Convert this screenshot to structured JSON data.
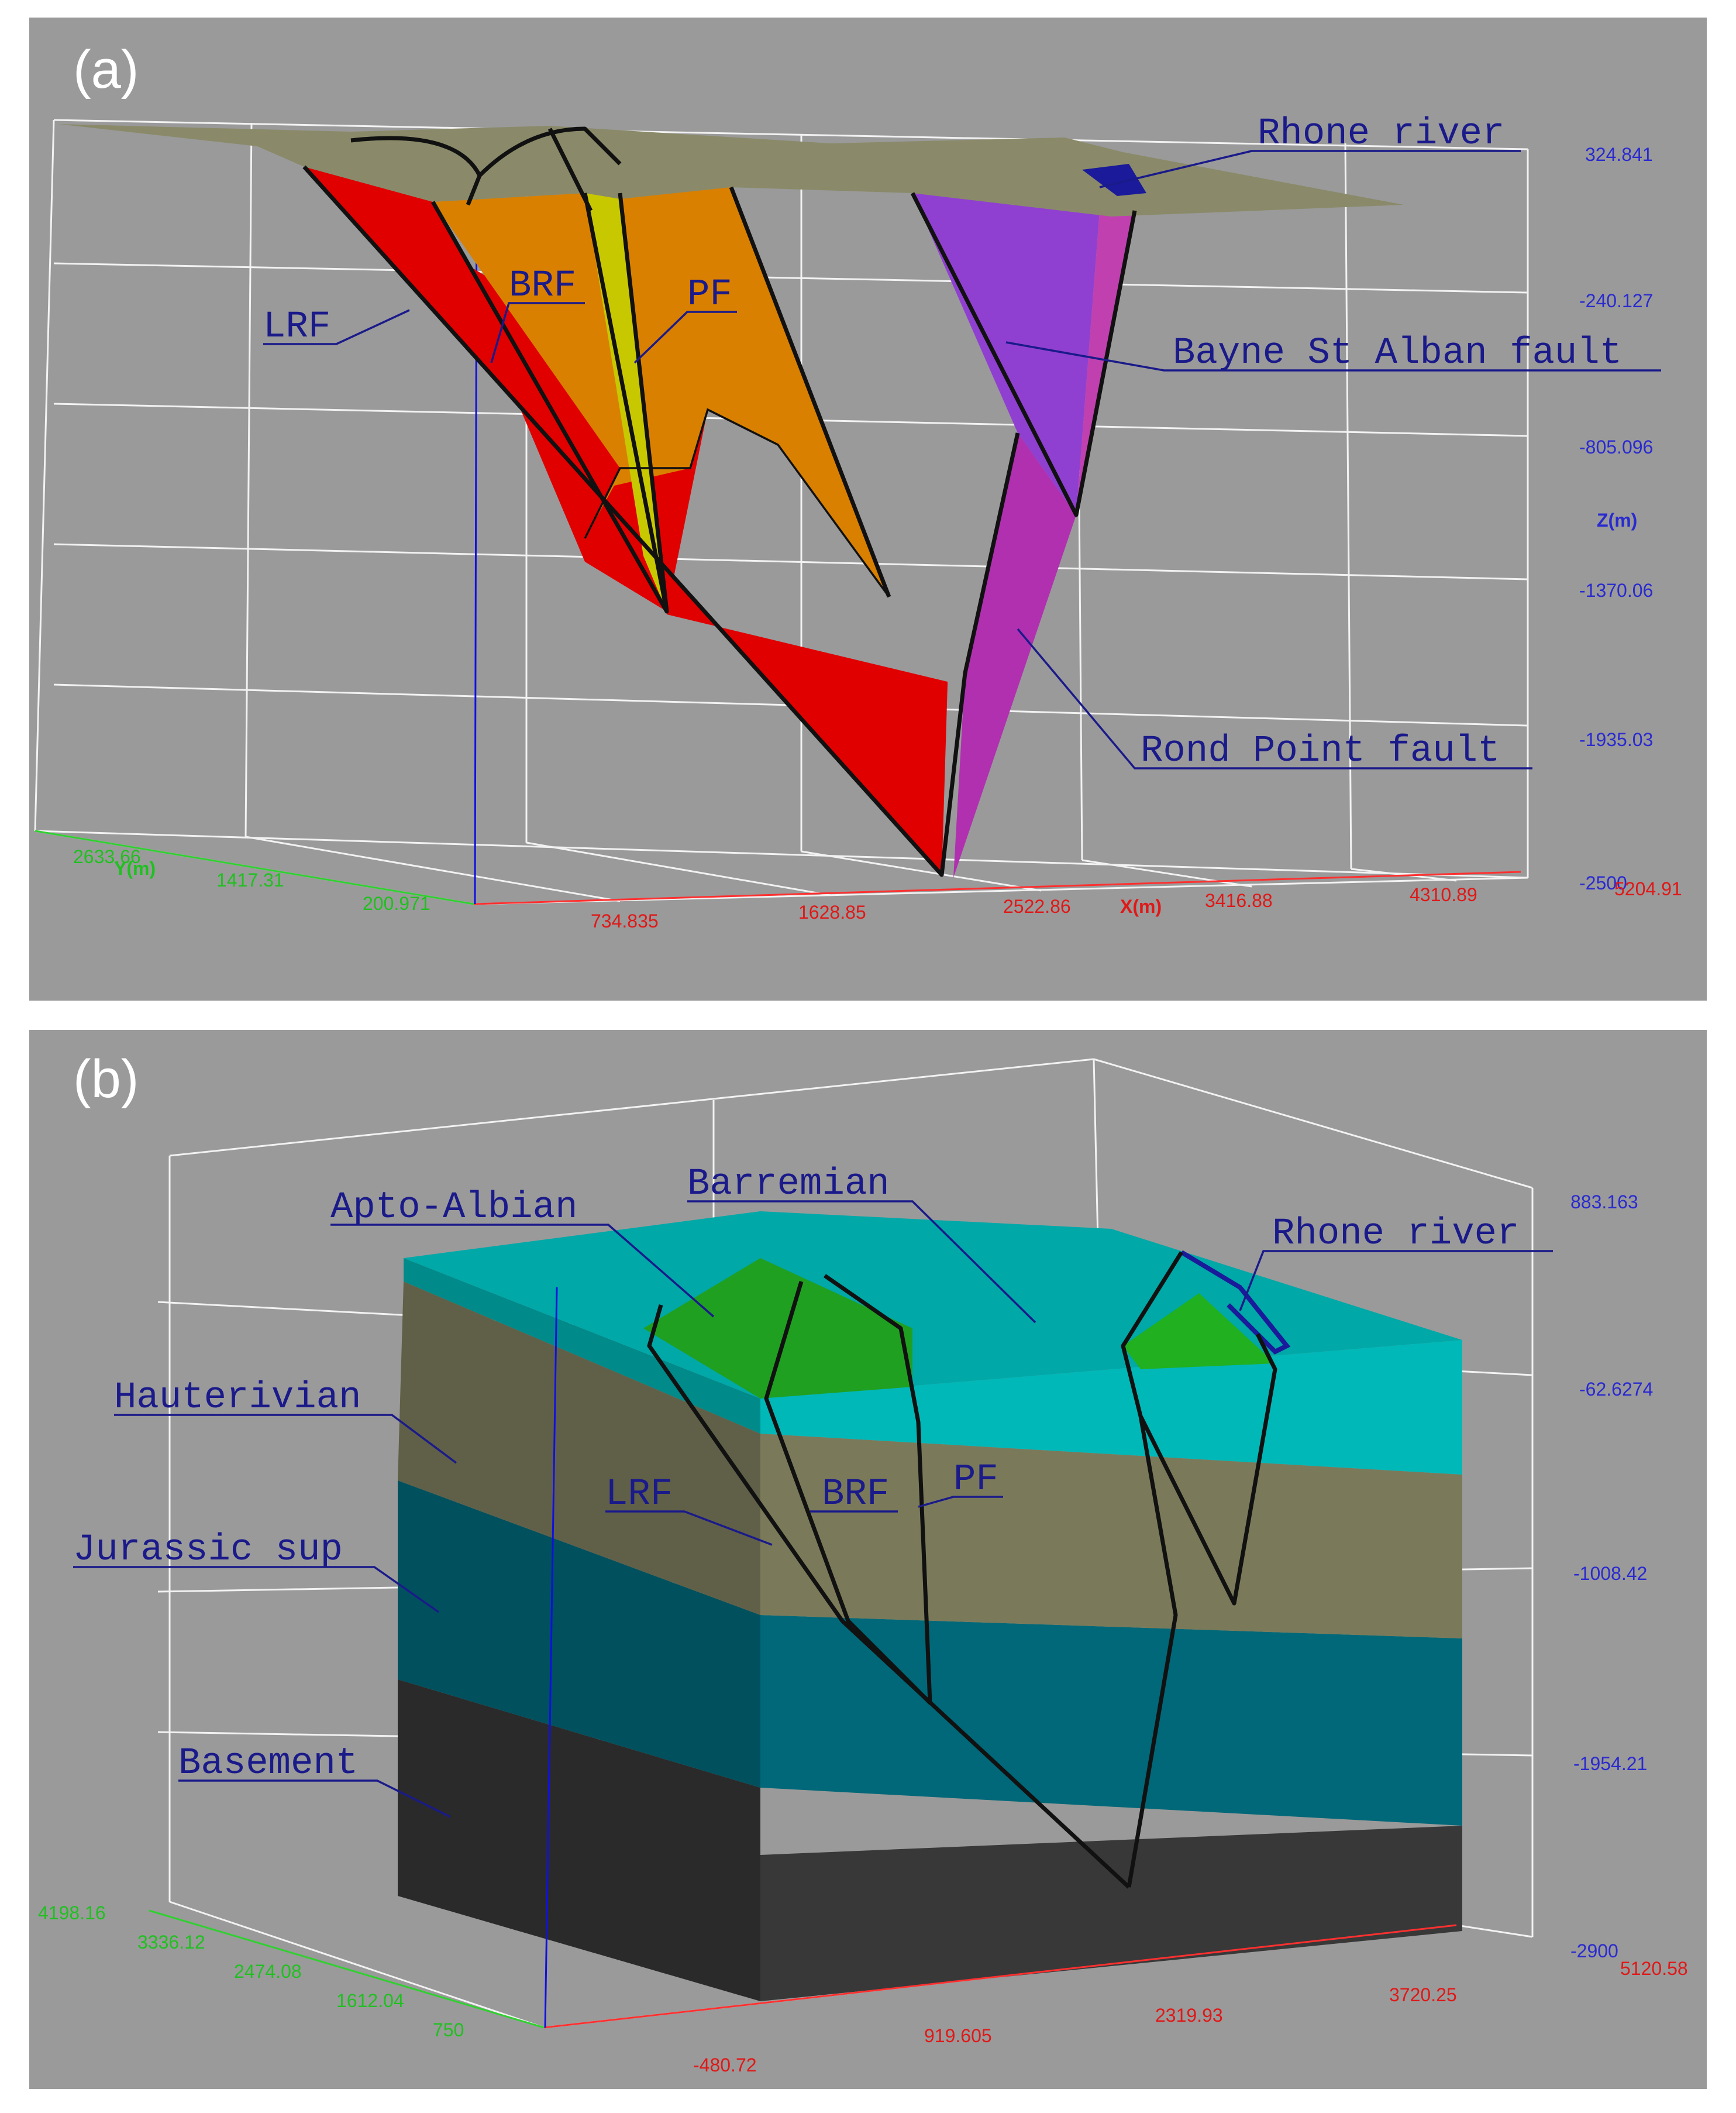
{
  "panel_a": {
    "label": "(a)",
    "callouts": {
      "lrf": "LRF",
      "brf": "BRF",
      "pf": "PF",
      "rhone": "Rhone river",
      "bayne": "Bayne St Alban fault",
      "rond": "Rond Point fault"
    },
    "z_axis": {
      "name": "Z(m)",
      "ticks": [
        "324.841",
        "-240.127",
        "-805.096",
        "-1370.06",
        "-1935.03",
        "-2500"
      ]
    },
    "x_axis": {
      "name": "X(m)",
      "ticks": [
        "734.835",
        "1628.85",
        "2522.86",
        "3416.88",
        "4310.89",
        "5204.91"
      ]
    },
    "y_axis": {
      "name": "Y(m)",
      "ticks": [
        "2633.66",
        "1417.31",
        "200.971"
      ]
    },
    "colors": {
      "topography": "#8a8a6a",
      "lrf": "#e00000",
      "brf": "#d98000",
      "pf": "#c8c800",
      "bayne": "#9040d0",
      "rond": "#b030b0"
    }
  },
  "panel_b": {
    "label": "(b)",
    "callouts": {
      "apto": "Apto-Albian",
      "barremian": "Barremian",
      "rhone": "Rhone river",
      "hauterivian": "Hauterivian",
      "lrf": "LRF",
      "brf": "BRF",
      "pf": "PF",
      "jurassic": "Jurassic sup",
      "basement": "Basement"
    },
    "z_axis": {
      "ticks": [
        "883.163",
        "-62.6274",
        "-1008.42",
        "-1954.21",
        "-2900"
      ]
    },
    "x_axis": {
      "ticks": [
        "-480.72",
        "919.605",
        "2319.93",
        "3720.25",
        "5120.58"
      ]
    },
    "y_axis": {
      "ticks": [
        "4198.16",
        "3336.12",
        "2474.08",
        "1612.04",
        "750"
      ]
    },
    "colors": {
      "barremian": "#00b8b8",
      "apto_albian": "#20b020",
      "hauterivian": "#7a7a5a",
      "jurassic_sup": "#006878",
      "basement": "#383838"
    }
  }
}
